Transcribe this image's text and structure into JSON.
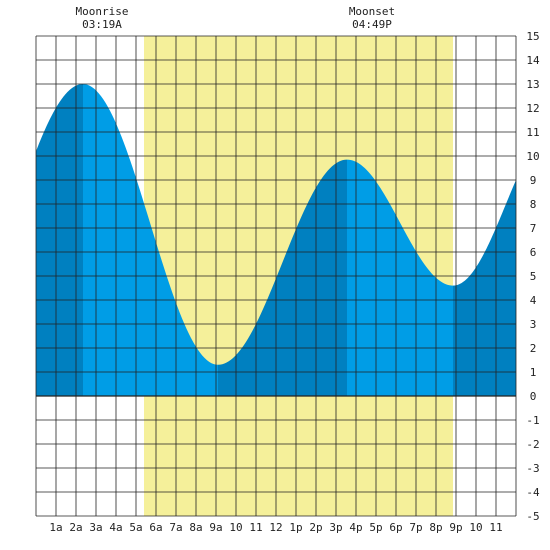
{
  "chart_data": {
    "type": "area",
    "ylim": [
      -5,
      15
    ],
    "y_ticks": [
      -5,
      -4,
      -3,
      -2,
      -1,
      0,
      1,
      2,
      3,
      4,
      5,
      6,
      7,
      8,
      9,
      10,
      11,
      12,
      13,
      14,
      15
    ],
    "x_range_hours": [
      0,
      24
    ],
    "x_tick_hours": [
      1,
      2,
      3,
      4,
      5,
      6,
      7,
      8,
      9,
      10,
      11,
      12,
      13,
      14,
      15,
      16,
      17,
      18,
      19,
      20,
      21,
      22,
      23
    ],
    "x_tick_labels": [
      "1a",
      "2a",
      "3a",
      "4a",
      "5a",
      "6a",
      "7a",
      "8a",
      "9a",
      "10",
      "11",
      "12",
      "1p",
      "2p",
      "3p",
      "4p",
      "5p",
      "6p",
      "7p",
      "8p",
      "9p",
      "10",
      "11"
    ],
    "grid": true,
    "daylight_hours": [
      5.4,
      20.85
    ],
    "moonrise": {
      "label": "Moonrise",
      "time": "03:19A",
      "hour": 3.3
    },
    "moonset": {
      "label": "Moonset",
      "time": "04:49P",
      "hour": 16.8
    },
    "tide_extremes": [
      {
        "hour": 2.35,
        "height": 13.0,
        "kind": "high"
      },
      {
        "hour": 9.1,
        "height": 1.3,
        "kind": "low"
      },
      {
        "hour": 15.55,
        "height": 9.85,
        "kind": "high"
      },
      {
        "hour": 20.85,
        "height": 4.6,
        "kind": "low"
      }
    ],
    "tide_start": {
      "hour": 0,
      "height": 10.2
    },
    "tide_end": {
      "hour": 24,
      "height": 9.0
    }
  },
  "colors": {
    "daylight": "#f5f09a",
    "tide_light": "#009de6",
    "tide_dark": "#0080c0",
    "grid": "#222222",
    "background": "#ffffff"
  }
}
